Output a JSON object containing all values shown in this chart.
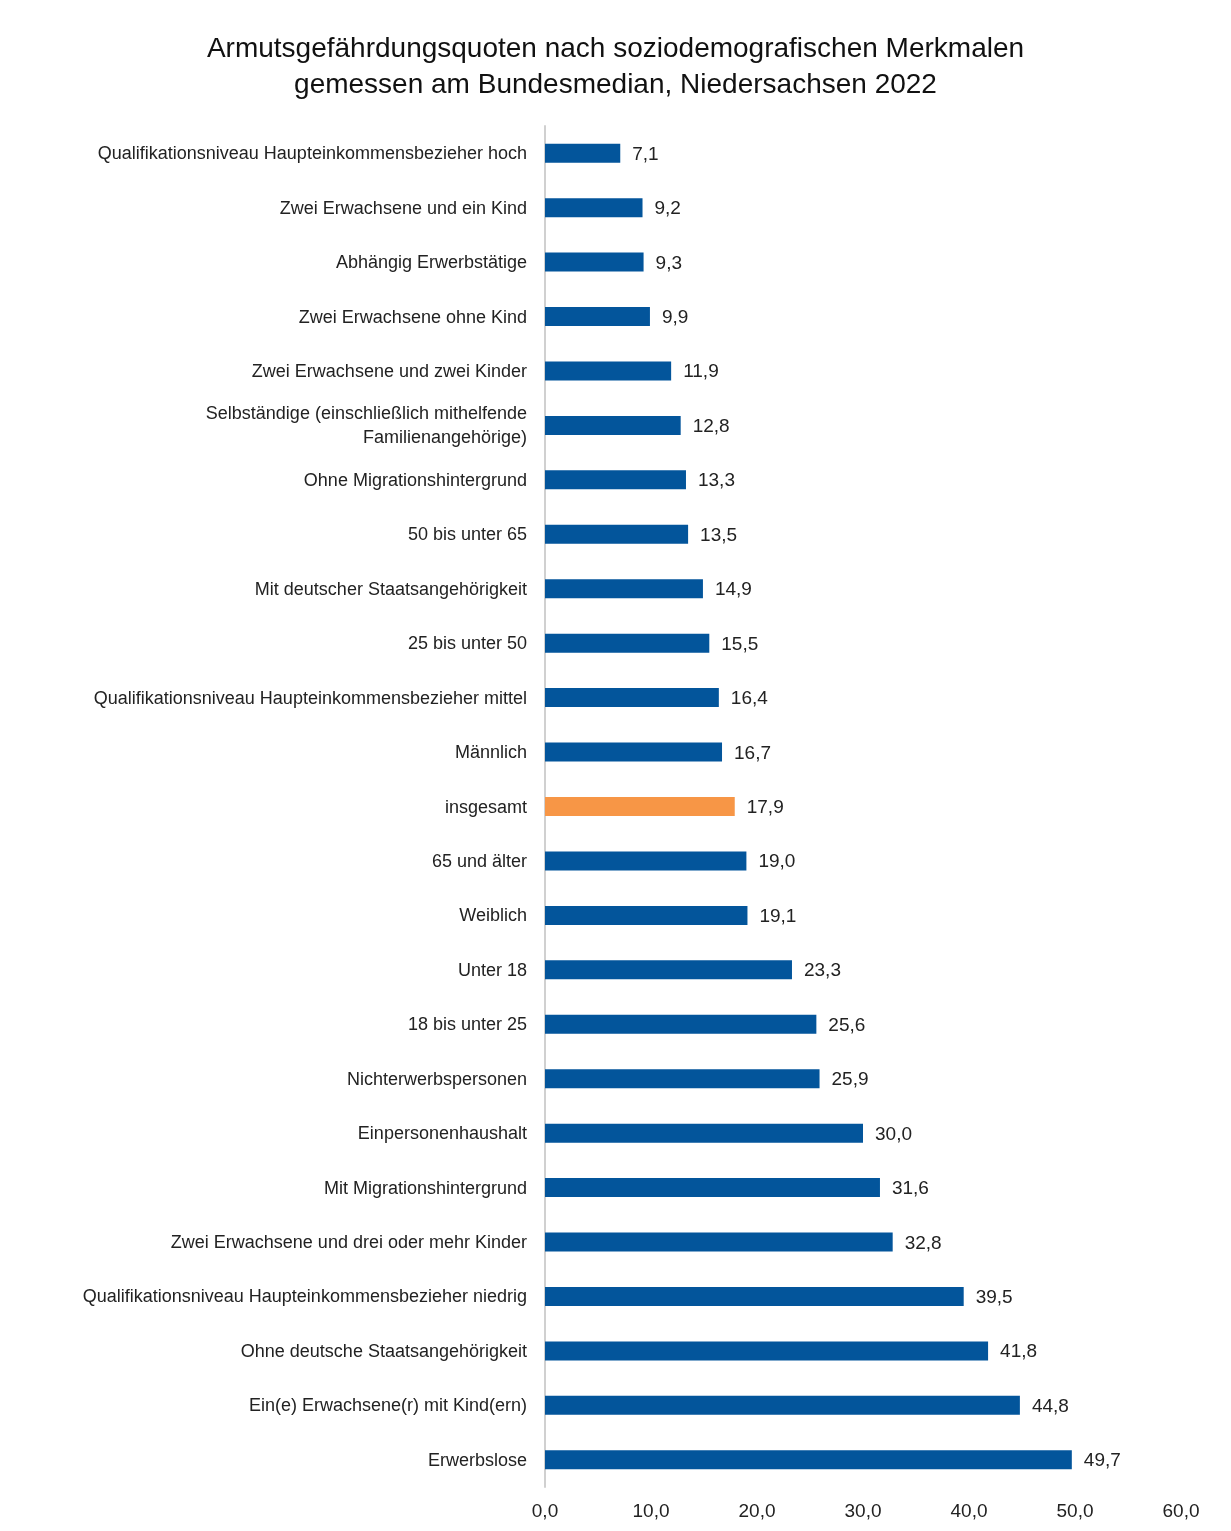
{
  "chart_data": {
    "type": "bar",
    "orientation": "horizontal",
    "title": "Armutsgefährdungsquoten nach soziodemografischen Merkmalen\ngemessen am Bundesmedian, Niedersachsen 2022",
    "categories": [
      "Qualifikationsniveau Haupteinkommensbezieher hoch",
      "Zwei Erwachsene und ein Kind",
      "Abhängig Erwerbstätige",
      "Zwei Erwachsene ohne Kind",
      "Zwei Erwachsene und zwei Kinder",
      "Selbständige (einschließlich mithelfende\nFamilienangehörige)",
      "Ohne Migrationshintergrund",
      "50 bis unter 65",
      "Mit deutscher Staatsangehörigkeit",
      "25 bis unter 50",
      "Qualifikationsniveau Haupteinkommensbezieher mittel",
      "Männlich",
      "insgesamt",
      "65 und älter",
      "Weiblich",
      "Unter 18",
      "18 bis unter 25",
      "Nichterwerbspersonen",
      "Einpersonenhaushalt",
      "Mit Migrationshintergrund",
      "Zwei Erwachsene und drei oder mehr Kinder",
      "Qualifikationsniveau Haupteinkommensbezieher niedrig",
      "Ohne deutsche Staatsangehörigkeit",
      "Ein(e) Erwachsene(r) mit Kind(ern)",
      "Erwerbslose"
    ],
    "values": [
      7.1,
      9.2,
      9.3,
      9.9,
      11.9,
      12.8,
      13.3,
      13.5,
      14.9,
      15.5,
      16.4,
      16.7,
      17.9,
      19.0,
      19.1,
      23.3,
      25.6,
      25.9,
      30.0,
      31.6,
      32.8,
      39.5,
      41.8,
      44.8,
      49.7
    ],
    "value_labels": [
      "7,1",
      "9,2",
      "9,3",
      "9,9",
      "11,9",
      "12,8",
      "13,3",
      "13,5",
      "14,9",
      "15,5",
      "16,4",
      "16,7",
      "17,9",
      "19,0",
      "19,1",
      "23,3",
      "25,6",
      "25,9",
      "30,0",
      "31,6",
      "32,8",
      "39,5",
      "41,8",
      "44,8",
      "49,7"
    ],
    "colors": [
      "#03559b",
      "#03559b",
      "#03559b",
      "#03559b",
      "#03559b",
      "#03559b",
      "#03559b",
      "#03559b",
      "#03559b",
      "#03559b",
      "#03559b",
      "#03559b",
      "#f79646",
      "#03559b",
      "#03559b",
      "#03559b",
      "#03559b",
      "#03559b",
      "#03559b",
      "#03559b",
      "#03559b",
      "#03559b",
      "#03559b",
      "#03559b",
      "#03559b"
    ],
    "xlim": [
      0,
      60
    ],
    "xticks": [
      {
        "value": 0,
        "label": "0,0"
      },
      {
        "value": 10,
        "label": "10,0"
      },
      {
        "value": 20,
        "label": "20,0"
      },
      {
        "value": 30,
        "label": "30,0"
      },
      {
        "value": 40,
        "label": "40,0"
      },
      {
        "value": 50,
        "label": "50,0"
      },
      {
        "value": 60,
        "label": "60,0"
      }
    ],
    "grid": false
  }
}
